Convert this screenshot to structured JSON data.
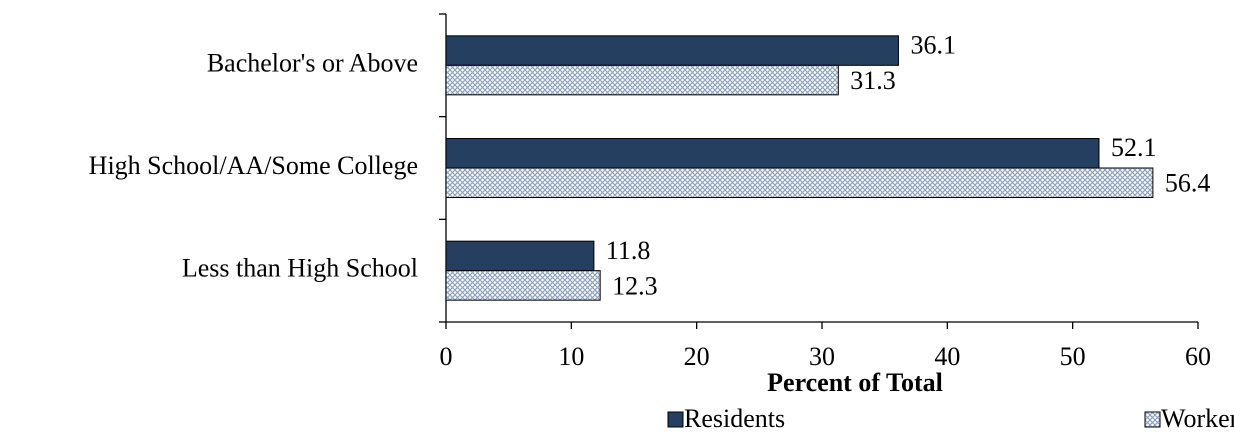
{
  "chart_data": {
    "type": "bar",
    "orientation": "horizontal",
    "x_label": "Percent of Total",
    "categories": [
      "Bachelor's or Above",
      "High School/AA/Some College",
      "Less than High School"
    ],
    "series": [
      {
        "name": "Residents",
        "color": "#243f60",
        "values": [
          36.1,
          52.1,
          11.8
        ]
      },
      {
        "name": "Workers",
        "color": "#8fa3bf",
        "pattern": "crosshatch",
        "values": [
          31.3,
          56.4,
          12.3
        ]
      }
    ],
    "xlim": [
      0,
      60
    ],
    "xticks": [
      0,
      10,
      20,
      30,
      40,
      50,
      60
    ],
    "grid": false,
    "legend": "bottom"
  }
}
